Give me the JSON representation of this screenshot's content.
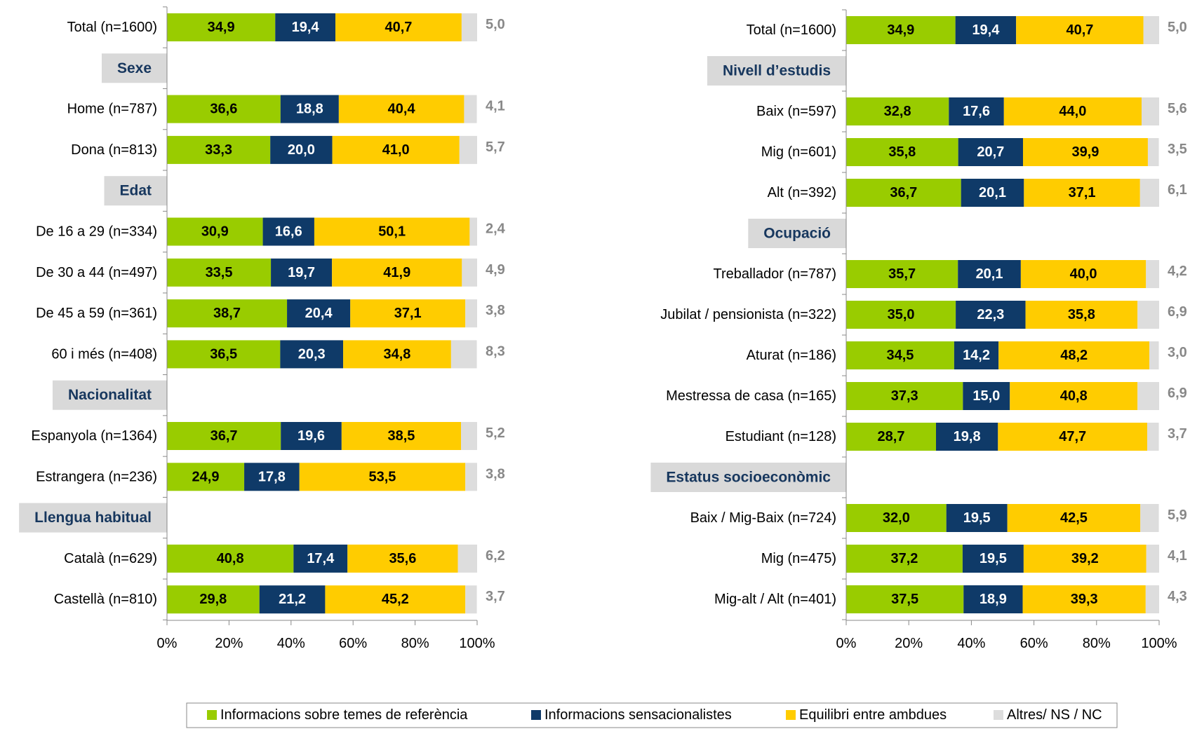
{
  "chart_data": [
    {
      "type": "bar",
      "categories": [
        "Total (n=1600)",
        "Sexe",
        "Home (n=787)",
        "Dona (n=813)",
        "Edat",
        "De 16 a 29 (n=334)",
        "De 30 a 44 (n=497)",
        "De 45 a 59 (n=361)",
        "60 i més (n=408)",
        "Nacionalitat",
        "Espanyola (n=1364)",
        "Estrangera (n=236)",
        "Llengua habitual",
        "Català (n=629)",
        "Castellà (n=810)"
      ],
      "series": [
        {
          "name": "Informacions sobre temes de referència",
          "color": "#99cc00",
          "values": [
            34.9,
            null,
            36.6,
            33.3,
            null,
            30.9,
            33.5,
            38.7,
            36.5,
            null,
            36.7,
            24.9,
            null,
            40.8,
            29.8
          ],
          "value_labels": [
            "34,9",
            null,
            "36,6",
            "33,3",
            null,
            "30,9",
            "33,5",
            "38,7",
            "36,5",
            null,
            "36,7",
            "24,9",
            null,
            "40,8",
            "29,8"
          ]
        },
        {
          "name": "Informacions sensacionalistes",
          "color": "#0f3a68",
          "values": [
            19.4,
            null,
            18.8,
            20.0,
            null,
            16.6,
            19.7,
            20.4,
            20.3,
            null,
            19.6,
            17.8,
            null,
            17.4,
            21.2
          ],
          "value_labels": [
            "19,4",
            null,
            "18,8",
            "20,0",
            null,
            "16,6",
            "19,7",
            "20,4",
            "20,3",
            null,
            "19,6",
            "17,8",
            null,
            "17,4",
            "21,2"
          ]
        },
        {
          "name": "Equilibri entre ambdues",
          "color": "#ffcc00",
          "values": [
            40.7,
            null,
            40.4,
            41.0,
            null,
            50.1,
            41.9,
            37.1,
            34.8,
            null,
            38.5,
            53.5,
            null,
            35.6,
            45.2
          ],
          "value_labels": [
            "40,7",
            null,
            "40,4",
            "41,0",
            null,
            "50,1",
            "41,9",
            "37,1",
            "34,8",
            null,
            "38,5",
            "53,5",
            null,
            "35,6",
            "45,2"
          ]
        },
        {
          "name": "Altres/ NS / NC",
          "color": "#dddddd",
          "values": [
            5.0,
            null,
            4.1,
            5.7,
            null,
            2.4,
            4.9,
            3.8,
            8.3,
            null,
            5.2,
            3.8,
            null,
            6.2,
            3.7
          ],
          "value_labels": [
            "5,0",
            null,
            "4,1",
            "5,7",
            null,
            "2,4",
            "4,9",
            "3,8",
            "8,3",
            null,
            "5,2",
            "3,8",
            null,
            "6,2",
            "3,7"
          ]
        }
      ],
      "xlim": [
        0,
        100
      ],
      "xticks": [
        {
          "value": 0,
          "label": "0%"
        },
        {
          "value": 20,
          "label": "20%"
        },
        {
          "value": 40,
          "label": "40%"
        },
        {
          "value": 60,
          "label": "60%"
        },
        {
          "value": 80,
          "label": "80%"
        },
        {
          "value": 100,
          "label": "100%"
        }
      ]
    },
    {
      "type": "bar",
      "categories": [
        "Total (n=1600)",
        "Nivell d’estudis",
        "Baix (n=597)",
        "Mig (n=601)",
        "Alt (n=392)",
        "Ocupació",
        "Treballador (n=787)",
        "Jubilat / pensionista (n=322)",
        "Aturat (n=186)",
        "Mestressa de casa (n=165)",
        "Estudiant (n=128)",
        "Estatus socioeconòmic",
        "Baix / Mig-Baix (n=724)",
        "Mig (n=475)",
        "Mig-alt / Alt (n=401)"
      ],
      "series": [
        {
          "color": "#99cc00",
          "values": [
            34.9,
            null,
            32.8,
            35.8,
            36.7,
            null,
            35.7,
            35.0,
            34.5,
            37.3,
            28.7,
            null,
            32.0,
            37.2,
            37.5
          ],
          "value_labels": [
            "34,9",
            null,
            "32,8",
            "35,8",
            "36,7",
            null,
            "35,7",
            "35,0",
            "34,5",
            "37,3",
            "28,7",
            null,
            "32,0",
            "37,2",
            "37,5"
          ]
        },
        {
          "color": "#0f3a68",
          "values": [
            19.4,
            null,
            17.6,
            20.7,
            20.1,
            null,
            20.1,
            22.3,
            14.2,
            15.0,
            19.8,
            null,
            19.5,
            19.5,
            18.9
          ],
          "value_labels": [
            "19,4",
            null,
            "17,6",
            "20,7",
            "20,1",
            null,
            "20,1",
            "22,3",
            "14,2",
            "15,0",
            "19,8",
            null,
            "19,5",
            "19,5",
            "18,9"
          ]
        },
        {
          "color": "#ffcc00",
          "values": [
            40.7,
            null,
            44.0,
            39.9,
            37.1,
            null,
            40.0,
            35.8,
            48.2,
            40.8,
            47.7,
            null,
            42.5,
            39.2,
            39.3
          ],
          "value_labels": [
            "40,7",
            null,
            "44,0",
            "39,9",
            "37,1",
            null,
            "40,0",
            "35,8",
            "48,2",
            "40,8",
            "47,7",
            null,
            "42,5",
            "39,2",
            "39,3"
          ]
        },
        {
          "color": "#dddddd",
          "values": [
            5.0,
            null,
            5.6,
            3.5,
            6.1,
            null,
            4.2,
            6.9,
            3.0,
            6.9,
            3.7,
            null,
            5.9,
            4.1,
            4.3
          ],
          "value_labels": [
            "5,0",
            null,
            "5,6",
            "3,5",
            "6,1",
            null,
            "4,2",
            "6,9",
            "3,0",
            "6,9",
            "3,7",
            null,
            "5,9",
            "4,1",
            "4,3"
          ]
        }
      ],
      "xlim": [
        0,
        100
      ],
      "xticks": [
        {
          "value": 0,
          "label": "0%"
        },
        {
          "value": 20,
          "label": "20%"
        },
        {
          "value": 40,
          "label": "40%"
        },
        {
          "value": 60,
          "label": "60%"
        },
        {
          "value": 80,
          "label": "80%"
        },
        {
          "value": 100,
          "label": "100%"
        }
      ]
    }
  ]
}
